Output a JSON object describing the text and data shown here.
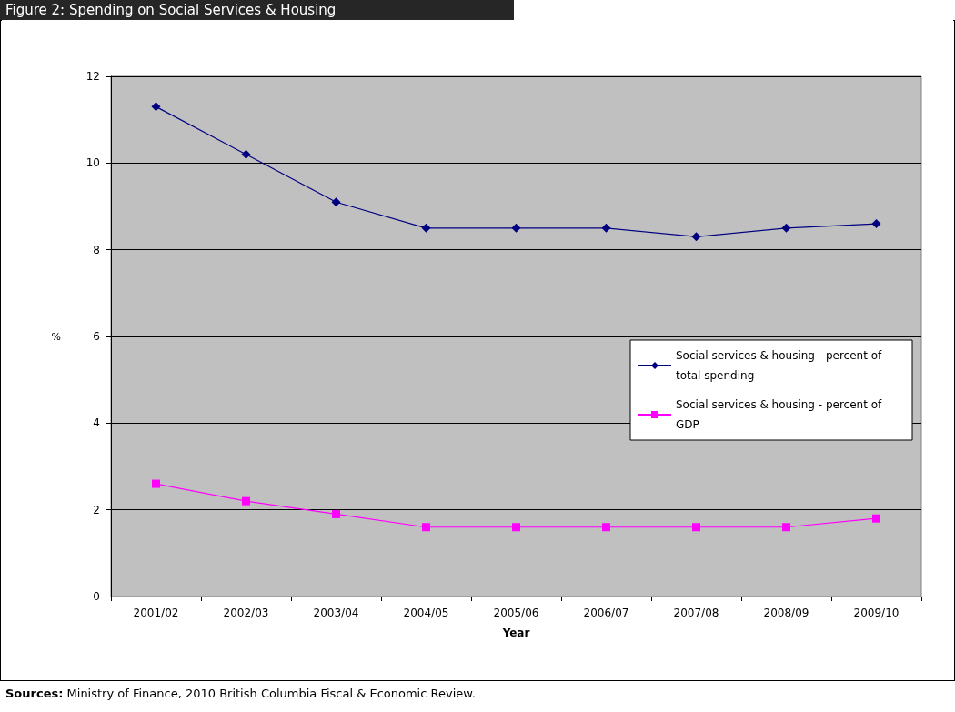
{
  "chart_data": {
    "type": "line",
    "title": "Figure 2: Spending on Social Services & Housing",
    "xlabel": "Year",
    "ylabel": "%",
    "categories": [
      "2001/02",
      "2002/03",
      "2003/04",
      "2004/05",
      "2005/06",
      "2006/07",
      "2007/08",
      "2008/09",
      "2009/10"
    ],
    "series": [
      {
        "name": "Social services & housing - percent of total spending",
        "color": "#000080",
        "marker": "diamond",
        "values": [
          11.3,
          10.2,
          9.1,
          8.5,
          8.5,
          8.5,
          8.3,
          8.5,
          8.6
        ]
      },
      {
        "name": "Social services & housing - percent of GDP",
        "color": "#ff00ff",
        "marker": "square",
        "values": [
          2.6,
          2.2,
          1.9,
          1.6,
          1.6,
          1.6,
          1.6,
          1.6,
          1.8
        ]
      }
    ],
    "ylim": [
      0,
      12
    ],
    "yticks": [
      0,
      2,
      4,
      6,
      8,
      10,
      12
    ],
    "grid": "y",
    "legend": "right",
    "line_style": "solid",
    "annotations": [
      "Sources: Ministry of Finance, 2010 British Columbia Fiscal & Economic Review."
    ]
  }
}
